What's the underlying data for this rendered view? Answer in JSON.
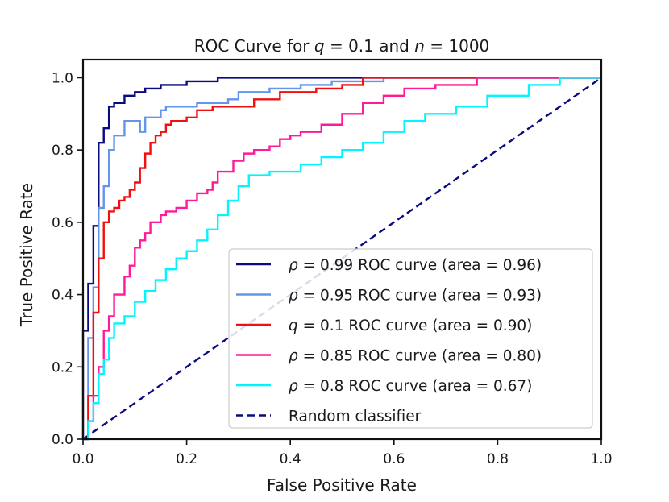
{
  "chart_data": {
    "type": "line",
    "title": "ROC Curve for q = 0.1 and n = 1000",
    "xlabel": "False Positive Rate",
    "ylabel": "True Positive Rate",
    "xlim": [
      0.0,
      1.0
    ],
    "ylim": [
      0.0,
      1.05
    ],
    "xticks": [
      0.0,
      0.2,
      0.4,
      0.6,
      0.8,
      1.0
    ],
    "yticks": [
      0.0,
      0.2,
      0.4,
      0.6,
      0.8,
      1.0
    ],
    "xtick_labels": [
      "0.0",
      "0.2",
      "0.4",
      "0.6",
      "0.8",
      "1.0"
    ],
    "ytick_labels": [
      "0.0",
      "0.2",
      "0.4",
      "0.6",
      "0.8",
      "1.0"
    ],
    "legend_position": "lower-right",
    "series": [
      {
        "name": "ρ = 0.99 ROC curve (area = 0.96)",
        "color": "#0b0b80",
        "dash": "solid",
        "x": [
          0.0,
          0.0,
          0.01,
          0.01,
          0.02,
          0.02,
          0.03,
          0.03,
          0.04,
          0.04,
          0.05,
          0.05,
          0.06,
          0.06,
          0.08,
          0.08,
          0.1,
          0.1,
          0.12,
          0.12,
          0.15,
          0.15,
          0.2,
          0.2,
          0.26,
          0.26,
          0.62,
          1.0
        ],
        "y": [
          0.0,
          0.3,
          0.3,
          0.43,
          0.43,
          0.59,
          0.59,
          0.82,
          0.82,
          0.86,
          0.86,
          0.92,
          0.92,
          0.93,
          0.93,
          0.95,
          0.95,
          0.96,
          0.96,
          0.97,
          0.97,
          0.98,
          0.98,
          0.99,
          0.99,
          1.0,
          1.0,
          1.0
        ]
      },
      {
        "name": "ρ = 0.95 ROC curve (area = 0.93)",
        "color": "#6495ed",
        "dash": "solid",
        "x": [
          0.0,
          0.01,
          0.01,
          0.02,
          0.02,
          0.03,
          0.03,
          0.04,
          0.04,
          0.05,
          0.05,
          0.06,
          0.06,
          0.08,
          0.08,
          0.11,
          0.11,
          0.12,
          0.12,
          0.15,
          0.15,
          0.16,
          0.16,
          0.22,
          0.22,
          0.28,
          0.28,
          0.3,
          0.3,
          0.36,
          0.36,
          0.42,
          0.42,
          0.48,
          0.48,
          0.52,
          0.52,
          0.58,
          0.58,
          0.74,
          0.74,
          1.0
        ],
        "y": [
          0.0,
          0.0,
          0.28,
          0.28,
          0.42,
          0.42,
          0.64,
          0.64,
          0.7,
          0.7,
          0.8,
          0.8,
          0.84,
          0.84,
          0.88,
          0.88,
          0.85,
          0.85,
          0.89,
          0.89,
          0.91,
          0.91,
          0.92,
          0.92,
          0.93,
          0.93,
          0.94,
          0.94,
          0.96,
          0.96,
          0.97,
          0.97,
          0.98,
          0.98,
          0.99,
          0.99,
          0.99,
          0.99,
          1.0,
          1.0,
          1.0,
          1.0
        ]
      },
      {
        "name": "q = 0.1 ROC curve (area = 0.90)",
        "color": "#f01010",
        "dash": "solid",
        "x": [
          0.0,
          0.01,
          0.01,
          0.02,
          0.02,
          0.03,
          0.03,
          0.04,
          0.04,
          0.05,
          0.05,
          0.06,
          0.06,
          0.07,
          0.07,
          0.08,
          0.08,
          0.09,
          0.09,
          0.1,
          0.1,
          0.11,
          0.11,
          0.12,
          0.12,
          0.13,
          0.13,
          0.14,
          0.14,
          0.15,
          0.15,
          0.16,
          0.16,
          0.17,
          0.17,
          0.2,
          0.2,
          0.22,
          0.22,
          0.25,
          0.25,
          0.33,
          0.33,
          0.38,
          0.38,
          0.45,
          0.45,
          0.5,
          0.5,
          0.54,
          0.54,
          0.78,
          1.0
        ],
        "y": [
          0.0,
          0.0,
          0.12,
          0.12,
          0.35,
          0.35,
          0.5,
          0.5,
          0.6,
          0.6,
          0.63,
          0.63,
          0.64,
          0.64,
          0.66,
          0.66,
          0.67,
          0.67,
          0.69,
          0.69,
          0.71,
          0.71,
          0.75,
          0.75,
          0.79,
          0.79,
          0.82,
          0.82,
          0.84,
          0.84,
          0.85,
          0.85,
          0.87,
          0.87,
          0.88,
          0.88,
          0.89,
          0.89,
          0.91,
          0.91,
          0.92,
          0.92,
          0.94,
          0.94,
          0.96,
          0.96,
          0.97,
          0.97,
          0.98,
          0.98,
          1.0,
          1.0,
          1.0
        ]
      },
      {
        "name": "ρ = 0.85 ROC curve (area = 0.80)",
        "color": "#ff1a9a",
        "dash": "solid",
        "x": [
          0.0,
          0.01,
          0.01,
          0.02,
          0.02,
          0.03,
          0.03,
          0.04,
          0.04,
          0.05,
          0.05,
          0.06,
          0.06,
          0.08,
          0.08,
          0.09,
          0.09,
          0.1,
          0.1,
          0.11,
          0.11,
          0.12,
          0.12,
          0.13,
          0.13,
          0.15,
          0.15,
          0.16,
          0.16,
          0.18,
          0.18,
          0.2,
          0.2,
          0.22,
          0.22,
          0.24,
          0.24,
          0.25,
          0.25,
          0.26,
          0.26,
          0.29,
          0.29,
          0.31,
          0.31,
          0.33,
          0.33,
          0.36,
          0.36,
          0.38,
          0.38,
          0.4,
          0.4,
          0.42,
          0.42,
          0.46,
          0.46,
          0.5,
          0.5,
          0.54,
          0.54,
          0.58,
          0.58,
          0.62,
          0.62,
          0.68,
          0.68,
          0.76,
          0.76,
          0.92,
          1.0
        ],
        "y": [
          0.0,
          0.0,
          0.05,
          0.05,
          0.12,
          0.12,
          0.2,
          0.2,
          0.3,
          0.3,
          0.34,
          0.34,
          0.4,
          0.4,
          0.45,
          0.45,
          0.48,
          0.48,
          0.53,
          0.53,
          0.55,
          0.55,
          0.57,
          0.57,
          0.6,
          0.6,
          0.62,
          0.62,
          0.63,
          0.63,
          0.64,
          0.64,
          0.66,
          0.66,
          0.68,
          0.68,
          0.69,
          0.69,
          0.71,
          0.71,
          0.74,
          0.74,
          0.77,
          0.77,
          0.79,
          0.79,
          0.8,
          0.8,
          0.81,
          0.81,
          0.83,
          0.83,
          0.84,
          0.84,
          0.85,
          0.85,
          0.87,
          0.87,
          0.9,
          0.9,
          0.93,
          0.93,
          0.95,
          0.95,
          0.97,
          0.97,
          0.98,
          0.98,
          1.0,
          1.0,
          1.0
        ]
      },
      {
        "name": "ρ = 0.8 ROC curve (area = 0.67)",
        "color": "#00f5ff",
        "dash": "solid",
        "x": [
          0.0,
          0.01,
          0.01,
          0.02,
          0.02,
          0.03,
          0.03,
          0.04,
          0.04,
          0.05,
          0.05,
          0.06,
          0.06,
          0.08,
          0.08,
          0.1,
          0.1,
          0.12,
          0.12,
          0.14,
          0.14,
          0.16,
          0.16,
          0.18,
          0.18,
          0.2,
          0.2,
          0.22,
          0.22,
          0.24,
          0.24,
          0.26,
          0.26,
          0.28,
          0.28,
          0.3,
          0.3,
          0.32,
          0.32,
          0.36,
          0.36,
          0.42,
          0.42,
          0.46,
          0.46,
          0.5,
          0.5,
          0.54,
          0.54,
          0.58,
          0.58,
          0.62,
          0.62,
          0.66,
          0.66,
          0.72,
          0.72,
          0.78,
          0.78,
          0.86,
          0.86,
          0.92,
          0.92,
          0.97,
          0.97,
          1.0
        ],
        "y": [
          0.0,
          0.0,
          0.05,
          0.05,
          0.1,
          0.1,
          0.18,
          0.18,
          0.22,
          0.22,
          0.28,
          0.28,
          0.32,
          0.32,
          0.34,
          0.34,
          0.38,
          0.38,
          0.41,
          0.41,
          0.44,
          0.44,
          0.47,
          0.47,
          0.5,
          0.5,
          0.52,
          0.52,
          0.55,
          0.55,
          0.58,
          0.58,
          0.62,
          0.62,
          0.66,
          0.66,
          0.7,
          0.7,
          0.73,
          0.73,
          0.74,
          0.74,
          0.76,
          0.76,
          0.78,
          0.78,
          0.8,
          0.8,
          0.82,
          0.82,
          0.85,
          0.85,
          0.88,
          0.88,
          0.9,
          0.9,
          0.92,
          0.92,
          0.95,
          0.95,
          0.98,
          0.98,
          1.0,
          1.0,
          1.0,
          1.0
        ]
      },
      {
        "name": "Random classifier",
        "color": "#0b0b80",
        "dash": "dashed",
        "x": [
          0.0,
          1.0
        ],
        "y": [
          0.0,
          1.0
        ]
      }
    ]
  }
}
